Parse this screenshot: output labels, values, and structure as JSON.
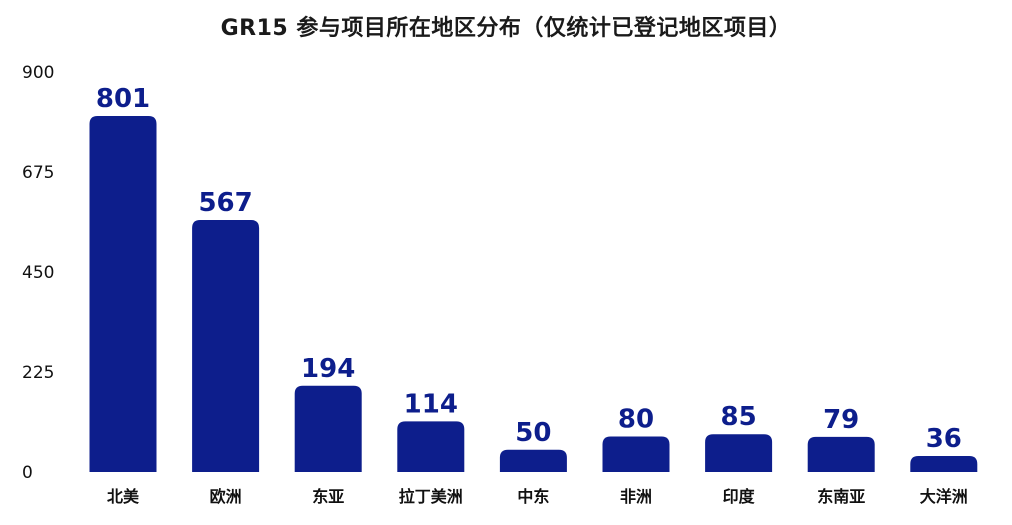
{
  "chart_data": {
    "type": "bar",
    "title": "GR15 参与项目所在地区分布（仅统计已登记地区项目）",
    "xlabel": "",
    "ylabel": "",
    "categories": [
      "北美",
      "欧洲",
      "东亚",
      "拉丁美洲",
      "中东",
      "非洲",
      "印度",
      "东南亚",
      "大洋洲"
    ],
    "values": [
      801,
      567,
      194,
      114,
      50,
      80,
      85,
      79,
      36
    ],
    "yticks": [
      "0",
      "225",
      "450",
      "675",
      "900"
    ],
    "ylim": [
      0,
      900
    ],
    "grid": false,
    "legend": "none",
    "bar_color": "#0d1e8c",
    "label_color": "#0d1e8c"
  }
}
